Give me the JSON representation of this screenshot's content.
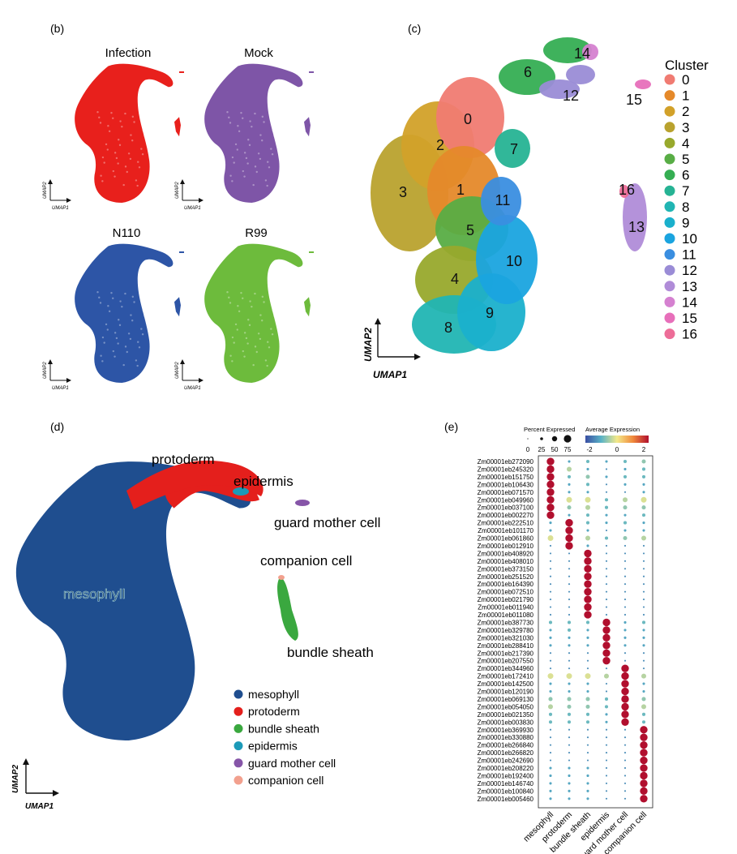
{
  "panels": {
    "b": {
      "label": "(b)",
      "subplots": [
        {
          "title": "Infection",
          "color": "#e8201c"
        },
        {
          "title": "Mock",
          "color": "#7e55a7"
        },
        {
          "title": "N110",
          "color": "#2d55a6"
        },
        {
          "title": "R99",
          "color": "#6dbb3c"
        }
      ],
      "axis_x": "UMAP1",
      "axis_y": "UMAP2"
    },
    "c": {
      "label": "(c)",
      "legend_title": "Cluster",
      "clusters": [
        "0",
        "1",
        "2",
        "3",
        "4",
        "5",
        "6",
        "7",
        "8",
        "9",
        "10",
        "11",
        "12",
        "13",
        "14",
        "15",
        "16"
      ],
      "colors": [
        "#f07b72",
        "#e5892a",
        "#d2a129",
        "#b9a22e",
        "#98a92c",
        "#58ad45",
        "#35ae53",
        "#26b394",
        "#21b5b3",
        "#1ab0cc",
        "#1aa4df",
        "#3a8ee0",
        "#9a8cd6",
        "#b08cd8",
        "#d581d0",
        "#e76fba",
        "#ed6d98"
      ],
      "axis_x": "UMAP1",
      "axis_y": "UMAP2"
    },
    "d": {
      "label": "(d)",
      "annotations": [
        "protoderm",
        "epidermis",
        "guard mother cell",
        "companion cell",
        "mesophyll",
        "bundle sheath"
      ],
      "legend": [
        {
          "name": "mesophyll",
          "color": "#1f4e8f"
        },
        {
          "name": "protoderm",
          "color": "#e41f1c"
        },
        {
          "name": "bundle sheath",
          "color": "#3aa83f"
        },
        {
          "name": "epidermis",
          "color": "#1c9ab8"
        },
        {
          "name": "guard mother cell",
          "color": "#8655a8"
        },
        {
          "name": "companion cell",
          "color": "#f2a08e"
        }
      ],
      "axis_x": "UMAP1",
      "axis_y": "UMAP2"
    },
    "e": {
      "label": "(e)",
      "size_legend_title": "Percent Expressed",
      "size_ticks": [
        "0",
        "25",
        "50",
        "75"
      ],
      "color_legend_title": "Average Expression",
      "color_ticks": [
        "-2",
        "0",
        "2"
      ]
    }
  },
  "chart_data": [
    {
      "type": "scatter",
      "title": "",
      "xlabel": "UMAP1",
      "ylabel": "UMAP2",
      "facets": [
        "Infection",
        "Mock",
        "N110",
        "R99"
      ]
    },
    {
      "type": "scatter",
      "title": "",
      "xlabel": "UMAP1",
      "ylabel": "UMAP2",
      "legend_title": "Cluster",
      "series": [
        {
          "name": "0"
        },
        {
          "name": "1"
        },
        {
          "name": "2"
        },
        {
          "name": "3"
        },
        {
          "name": "4"
        },
        {
          "name": "5"
        },
        {
          "name": "6"
        },
        {
          "name": "7"
        },
        {
          "name": "8"
        },
        {
          "name": "9"
        },
        {
          "name": "10"
        },
        {
          "name": "11"
        },
        {
          "name": "12"
        },
        {
          "name": "13"
        },
        {
          "name": "14"
        },
        {
          "name": "15"
        },
        {
          "name": "16"
        }
      ]
    },
    {
      "type": "scatter",
      "title": "",
      "xlabel": "UMAP1",
      "ylabel": "UMAP2",
      "series": [
        {
          "name": "mesophyll"
        },
        {
          "name": "protoderm"
        },
        {
          "name": "bundle sheath"
        },
        {
          "name": "epidermis"
        },
        {
          "name": "guard mother cell"
        },
        {
          "name": "companion cell"
        }
      ]
    },
    {
      "type": "scatter",
      "subtype": "dotplot",
      "x_categories": [
        "mesophyll",
        "protoderm",
        "bundle sheath",
        "epidermis",
        "guard mother cell",
        "companion cell"
      ],
      "genes": [
        "Zm00001eb272090",
        "Zm00001eb245320",
        "Zm00001eb151750",
        "Zm00001eb106430",
        "Zm00001eb071570",
        "Zm00001eb049960",
        "Zm00001eb037100",
        "Zm00001eb002270",
        "Zm00001eb222510",
        "Zm00001eb101170",
        "Zm00001eb061860",
        "Zm00001eb012910",
        "Zm00001eb408920",
        "Zm00001eb408010",
        "Zm00001eb373150",
        "Zm00001eb251520",
        "Zm00001eb164390",
        "Zm00001eb072510",
        "Zm00001eb021790",
        "Zm00001eb011940",
        "Zm00001eb011080",
        "Zm00001eb387730",
        "Zm00001eb329780",
        "Zm00001eb321030",
        "Zm00001eb288410",
        "Zm00001eb217390",
        "Zm00001eb207550",
        "Zm00001eb344960",
        "Zm00001eb172410",
        "Zm00001eb142500",
        "Zm00001eb120190",
        "Zm00001eb069130",
        "Zm00001eb054050",
        "Zm00001eb021350",
        "Zm00001eb003830",
        "Zm00001eb369930",
        "Zm00001eb330880",
        "Zm00001eb266840",
        "Zm00001eb266820",
        "Zm00001eb242690",
        "Zm00001eb208220",
        "Zm00001eb192400",
        "Zm00001eb146740",
        "Zm00001eb100840",
        "Zm00001eb005460"
      ],
      "size_legend": {
        "title": "Percent Expressed",
        "values": [
          0,
          25,
          50,
          75
        ]
      },
      "color_legend": {
        "title": "Average Expression",
        "range": [
          -2,
          2
        ],
        "ticks": [
          -2,
          0,
          2
        ]
      },
      "marker_blocks": [
        {
          "cluster": "mesophyll",
          "gene_index_range": [
            0,
            7
          ]
        },
        {
          "cluster": "protoderm",
          "gene_index_range": [
            8,
            11
          ]
        },
        {
          "cluster": "bundle sheath",
          "gene_index_range": [
            12,
            20
          ]
        },
        {
          "cluster": "epidermis",
          "gene_index_range": [
            21,
            26
          ]
        },
        {
          "cluster": "guard mother cell",
          "gene_index_range": [
            27,
            34
          ]
        },
        {
          "cluster": "companion cell",
          "gene_index_range": [
            35,
            44
          ]
        }
      ],
      "background_expr": [
        [
          0.6,
          0.2,
          0.3,
          0.2,
          0.3,
          0.4
        ],
        [
          0.3,
          0.5,
          0.2,
          0.1,
          0.2,
          0.3
        ],
        [
          0.4,
          0.3,
          0.4,
          0.2,
          0.3,
          0.3
        ],
        [
          0.2,
          0.2,
          0.3,
          0.1,
          0.2,
          0.2
        ],
        [
          0.3,
          0.2,
          0.2,
          0.1,
          0.1,
          0.2
        ],
        [
          0.8,
          0.6,
          0.6,
          0.3,
          0.5,
          0.6
        ],
        [
          0.4,
          0.4,
          0.5,
          0.3,
          0.4,
          0.4
        ],
        [
          0.3,
          0.2,
          0.3,
          0.2,
          0.2,
          0.3
        ],
        [
          0.2,
          0.6,
          0.3,
          0.2,
          0.3,
          0.2
        ],
        [
          0.2,
          0.5,
          0.2,
          0.1,
          0.2,
          0.2
        ],
        [
          0.6,
          0.7,
          0.5,
          0.3,
          0.4,
          0.5
        ],
        [
          0.1,
          0.4,
          0.2,
          0.1,
          0.1,
          0.1
        ],
        [
          0.1,
          0.1,
          0.4,
          0.1,
          0.1,
          0.1
        ],
        [
          0.1,
          0.1,
          0.4,
          0.1,
          0.1,
          0.1
        ],
        [
          0.1,
          0.1,
          0.4,
          0.1,
          0.1,
          0.1
        ],
        [
          0.1,
          0.1,
          0.4,
          0.1,
          0.1,
          0.1
        ],
        [
          0.1,
          0.1,
          0.3,
          0.1,
          0.1,
          0.1
        ],
        [
          0.1,
          0.1,
          0.3,
          0.1,
          0.1,
          0.1
        ],
        [
          0.1,
          0.1,
          0.3,
          0.1,
          0.1,
          0.1
        ],
        [
          0.1,
          0.1,
          0.3,
          0.1,
          0.1,
          0.1
        ],
        [
          0.1,
          0.1,
          0.3,
          0.1,
          0.1,
          0.1
        ],
        [
          0.3,
          0.3,
          0.3,
          0.6,
          0.2,
          0.3
        ],
        [
          0.2,
          0.3,
          0.2,
          0.5,
          0.2,
          0.2
        ],
        [
          0.2,
          0.2,
          0.2,
          0.4,
          0.2,
          0.2
        ],
        [
          0.2,
          0.2,
          0.2,
          0.5,
          0.2,
          0.2
        ],
        [
          0.1,
          0.1,
          0.1,
          0.4,
          0.1,
          0.1
        ],
        [
          0.1,
          0.1,
          0.1,
          0.4,
          0.1,
          0.1
        ],
        [
          0.1,
          0.1,
          0.1,
          0.1,
          0.4,
          0.1
        ],
        [
          0.6,
          0.6,
          0.6,
          0.5,
          0.6,
          0.5
        ],
        [
          0.2,
          0.2,
          0.2,
          0.1,
          0.5,
          0.2
        ],
        [
          0.2,
          0.2,
          0.2,
          0.1,
          0.5,
          0.2
        ],
        [
          0.4,
          0.4,
          0.4,
          0.3,
          0.5,
          0.4
        ],
        [
          0.5,
          0.4,
          0.4,
          0.3,
          0.5,
          0.5
        ],
        [
          0.3,
          0.3,
          0.3,
          0.2,
          0.5,
          0.3
        ],
        [
          0.3,
          0.3,
          0.3,
          0.2,
          0.5,
          0.3
        ],
        [
          0.1,
          0.1,
          0.1,
          0.1,
          0.1,
          0.5
        ],
        [
          0.1,
          0.1,
          0.1,
          0.1,
          0.1,
          0.5
        ],
        [
          0.1,
          0.1,
          0.1,
          0.1,
          0.1,
          0.5
        ],
        [
          0.1,
          0.1,
          0.1,
          0.1,
          0.1,
          0.5
        ],
        [
          0.1,
          0.1,
          0.1,
          0.1,
          0.1,
          0.6
        ],
        [
          0.2,
          0.2,
          0.2,
          0.1,
          0.1,
          0.6
        ],
        [
          0.2,
          0.2,
          0.2,
          0.1,
          0.1,
          0.6
        ],
        [
          0.2,
          0.2,
          0.2,
          0.1,
          0.1,
          0.6
        ],
        [
          0.2,
          0.2,
          0.2,
          0.1,
          0.1,
          0.6
        ],
        [
          0.2,
          0.2,
          0.2,
          0.1,
          0.1,
          0.6
        ]
      ]
    }
  ]
}
